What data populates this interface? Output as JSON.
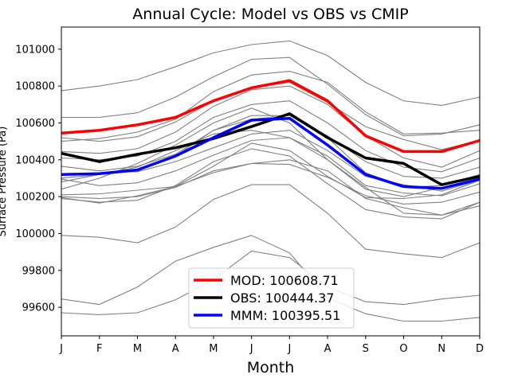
{
  "chart_data": {
    "type": "line",
    "title": "Annual Cycle: Model vs OBS vs CMIP",
    "xlabel": "Month",
    "ylabel": "Surface Pressure (Pa)",
    "categories": [
      "J",
      "F",
      "M",
      "A",
      "M",
      "J",
      "J",
      "A",
      "S",
      "O",
      "N",
      "D"
    ],
    "yticks": [
      99600,
      99800,
      100000,
      100200,
      100400,
      100600,
      100800,
      101000
    ],
    "ylim": [
      99445,
      101120
    ],
    "legend_position": "lower-center",
    "series": [
      {
        "name": "MOD",
        "legend_label": "MOD: 100608.71",
        "color": "#ff0000",
        "highlight": true,
        "values": [
          100545,
          100560,
          100590,
          100630,
          100720,
          100790,
          100830,
          100720,
          100530,
          100445,
          100445,
          100505
        ]
      },
      {
        "name": "OBS",
        "legend_label": "OBS: 100444.37",
        "color": "#000000",
        "highlight": true,
        "values": [
          100435,
          100390,
          100430,
          100465,
          100515,
          100580,
          100650,
          100520,
          100410,
          100380,
          100265,
          100310
        ]
      },
      {
        "name": "MMM",
        "legend_label": "MMM: 100395.51",
        "color": "#0000ff",
        "highlight": true,
        "values": [
          100320,
          100325,
          100345,
          100420,
          100520,
          100615,
          100625,
          100480,
          100320,
          100255,
          100245,
          100295
        ]
      }
    ],
    "cmip_models": [
      {
        "values": [
          100775,
          100800,
          100835,
          100905,
          100980,
          101025,
          101045,
          100965,
          100820,
          100720,
          100695,
          100740
        ]
      },
      {
        "values": [
          100630,
          100630,
          100655,
          100740,
          100850,
          100945,
          100955,
          100810,
          100645,
          100530,
          100540,
          100590
        ]
      },
      {
        "values": [
          100500,
          100515,
          100550,
          100620,
          100770,
          100860,
          100880,
          100820,
          100660,
          100540,
          100545,
          100560
        ]
      },
      {
        "values": [
          100520,
          100500,
          100525,
          100605,
          100720,
          100790,
          100820,
          100710,
          100580,
          100510,
          100455,
          100505
        ]
      },
      {
        "values": [
          100445,
          100435,
          100460,
          100550,
          100690,
          100780,
          100800,
          100700,
          100530,
          100410,
          100360,
          100450
        ]
      },
      {
        "values": [
          100410,
          100400,
          100420,
          100500,
          100630,
          100700,
          100720,
          100600,
          100450,
          100360,
          100335,
          100410
        ]
      },
      {
        "values": [
          100365,
          100340,
          100365,
          100430,
          100560,
          100640,
          100640,
          100530,
          100390,
          100310,
          100300,
          100360
        ]
      },
      {
        "values": [
          100315,
          100330,
          100335,
          100390,
          100465,
          100540,
          100560,
          100450,
          100310,
          100265,
          100230,
          100290
        ]
      },
      {
        "values": [
          100295,
          100260,
          100275,
          100340,
          100425,
          100505,
          100520,
          100420,
          100260,
          100220,
          100205,
          100270
        ]
      },
      {
        "values": [
          100210,
          100215,
          100235,
          100255,
          100330,
          100380,
          100375,
          100305,
          100205,
          100160,
          100170,
          100225
        ]
      },
      {
        "values": [
          100195,
          100165,
          100205,
          100255,
          100365,
          100490,
          100450,
          100310,
          100195,
          100190,
          100210,
          100290
        ]
      },
      {
        "values": [
          100240,
          100300,
          100380,
          100480,
          100600,
          100680,
          100600,
          100400,
          100250,
          100110,
          100100,
          100170
        ]
      },
      {
        "values": [
          100300,
          100320,
          100340,
          100420,
          100560,
          100620,
          100640,
          100520,
          100330,
          100250,
          100260,
          100320
        ]
      },
      {
        "values": [
          100280,
          100320,
          100360,
          100450,
          100540,
          100560,
          100520,
          100400,
          100240,
          100200,
          100250,
          100300
        ]
      },
      {
        "values": [
          100200,
          100190,
          100200,
          100250,
          100340,
          100380,
          100400,
          100340,
          100190,
          100140,
          100100,
          100150
        ]
      },
      {
        "values": [
          100190,
          100170,
          100180,
          100260,
          100390,
          100460,
          100420,
          100270,
          100130,
          100090,
          100080,
          100170
        ]
      },
      {
        "values": [
          99990,
          99980,
          99950,
          100035,
          100185,
          100265,
          100265,
          100110,
          99915,
          99890,
          99870,
          99950
        ]
      },
      {
        "values": [
          99645,
          99615,
          99710,
          99850,
          99925,
          99990,
          99895,
          99650,
          99565,
          99525,
          99525,
          99545
        ]
      },
      {
        "values": [
          99570,
          99560,
          99570,
          99640,
          99750,
          99905,
          99870,
          99710,
          99630,
          99615,
          99645,
          99665
        ]
      }
    ]
  }
}
